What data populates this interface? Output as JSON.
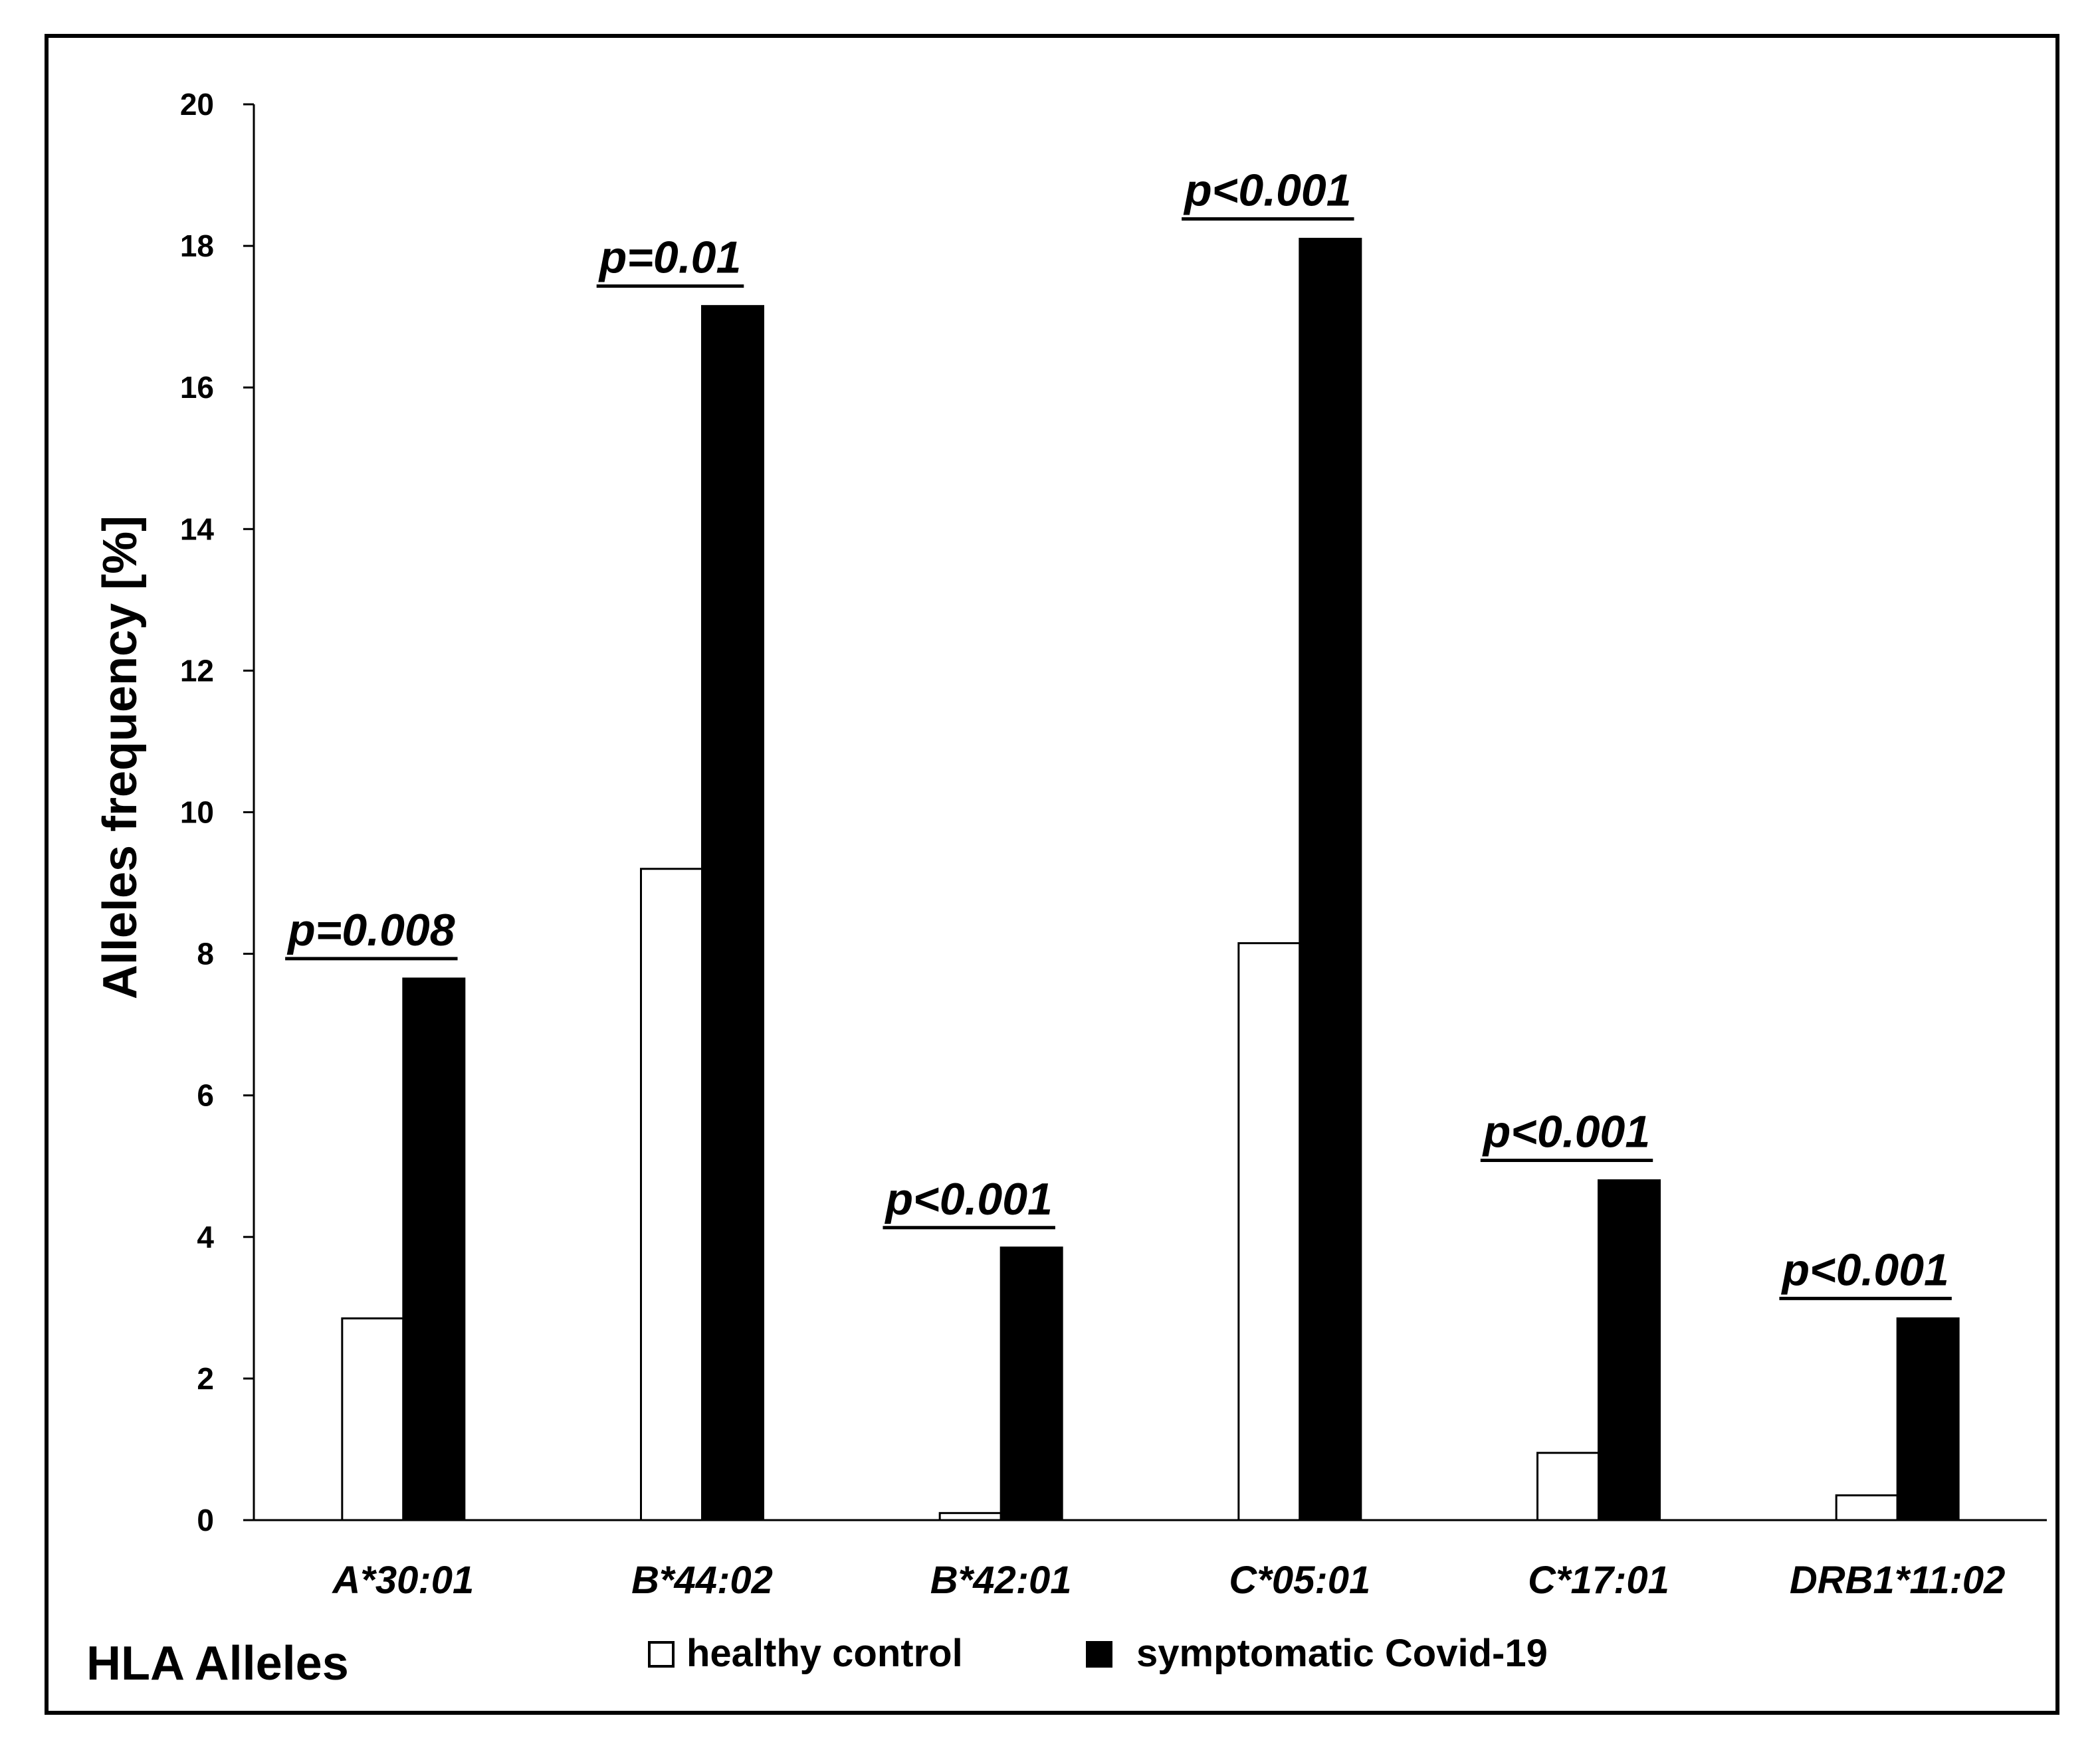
{
  "chart_data": {
    "type": "bar",
    "categories": [
      "A*30:01",
      "B*44:02",
      "B*42:01",
      "C*05:01",
      "C*17:01",
      "DRB1*11:02"
    ],
    "series": [
      {
        "name": "healthy control",
        "color": "#ffffff",
        "values": [
          2.85,
          9.2,
          0.1,
          8.15,
          0.95,
          0.35
        ]
      },
      {
        "name": "symptomatic Covid-19",
        "color": "#000000",
        "values": [
          7.65,
          17.15,
          3.85,
          18.1,
          4.8,
          2.85
        ]
      }
    ],
    "annotations": [
      "p=0.008",
      "p=0.01",
      "p<0.001",
      "p<0.001",
      "p<0.001",
      "p<0.001"
    ],
    "xlabel": "HLA Alleles",
    "ylabel": "Alleles frequency [%]",
    "ylim": [
      0,
      20
    ],
    "yticks": [
      0,
      2,
      4,
      6,
      8,
      10,
      12,
      14,
      16,
      18,
      20
    ],
    "grid": false,
    "legend": "bottom"
  }
}
